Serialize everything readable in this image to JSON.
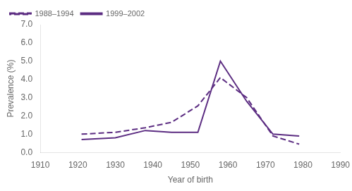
{
  "chart_data": {
    "type": "line",
    "x_label": "Year of birth",
    "y_label": "Prevalence (%)",
    "x": [
      1921,
      1930,
      1938,
      1945,
      1952,
      1958,
      1965,
      1972,
      1979
    ],
    "series": [
      {
        "name": "1988–1994",
        "color": "#5c2d82",
        "line_style": "dashed",
        "values": [
          1.0,
          1.1,
          1.35,
          1.65,
          2.55,
          4.1,
          3.0,
          0.9,
          0.45
        ]
      },
      {
        "name": "1999–2002",
        "color": "#5c2d82",
        "line_style": "solid",
        "values": [
          0.7,
          0.8,
          1.2,
          1.1,
          1.1,
          5.0,
          2.8,
          1.0,
          0.9
        ]
      }
    ],
    "xlim": [
      1910,
      1990
    ],
    "ylim": [
      0.0,
      7.0
    ],
    "xticks": [
      1910,
      1920,
      1930,
      1940,
      1950,
      1960,
      1970,
      1980,
      1990
    ],
    "yticks": [
      {
        "value": 0.0,
        "label": "0.0"
      },
      {
        "value": 1.0,
        "label": "1.0"
      },
      {
        "value": 2.0,
        "label": "2.0"
      },
      {
        "value": 3.0,
        "label": "3.0"
      },
      {
        "value": 4.0,
        "label": "4.0"
      },
      {
        "value": 5.0,
        "label": "5.0"
      },
      {
        "value": 6.0,
        "label": "6.0"
      },
      {
        "value": 7.0,
        "label": "7.0"
      }
    ],
    "grid": false,
    "legend": "upper left"
  }
}
